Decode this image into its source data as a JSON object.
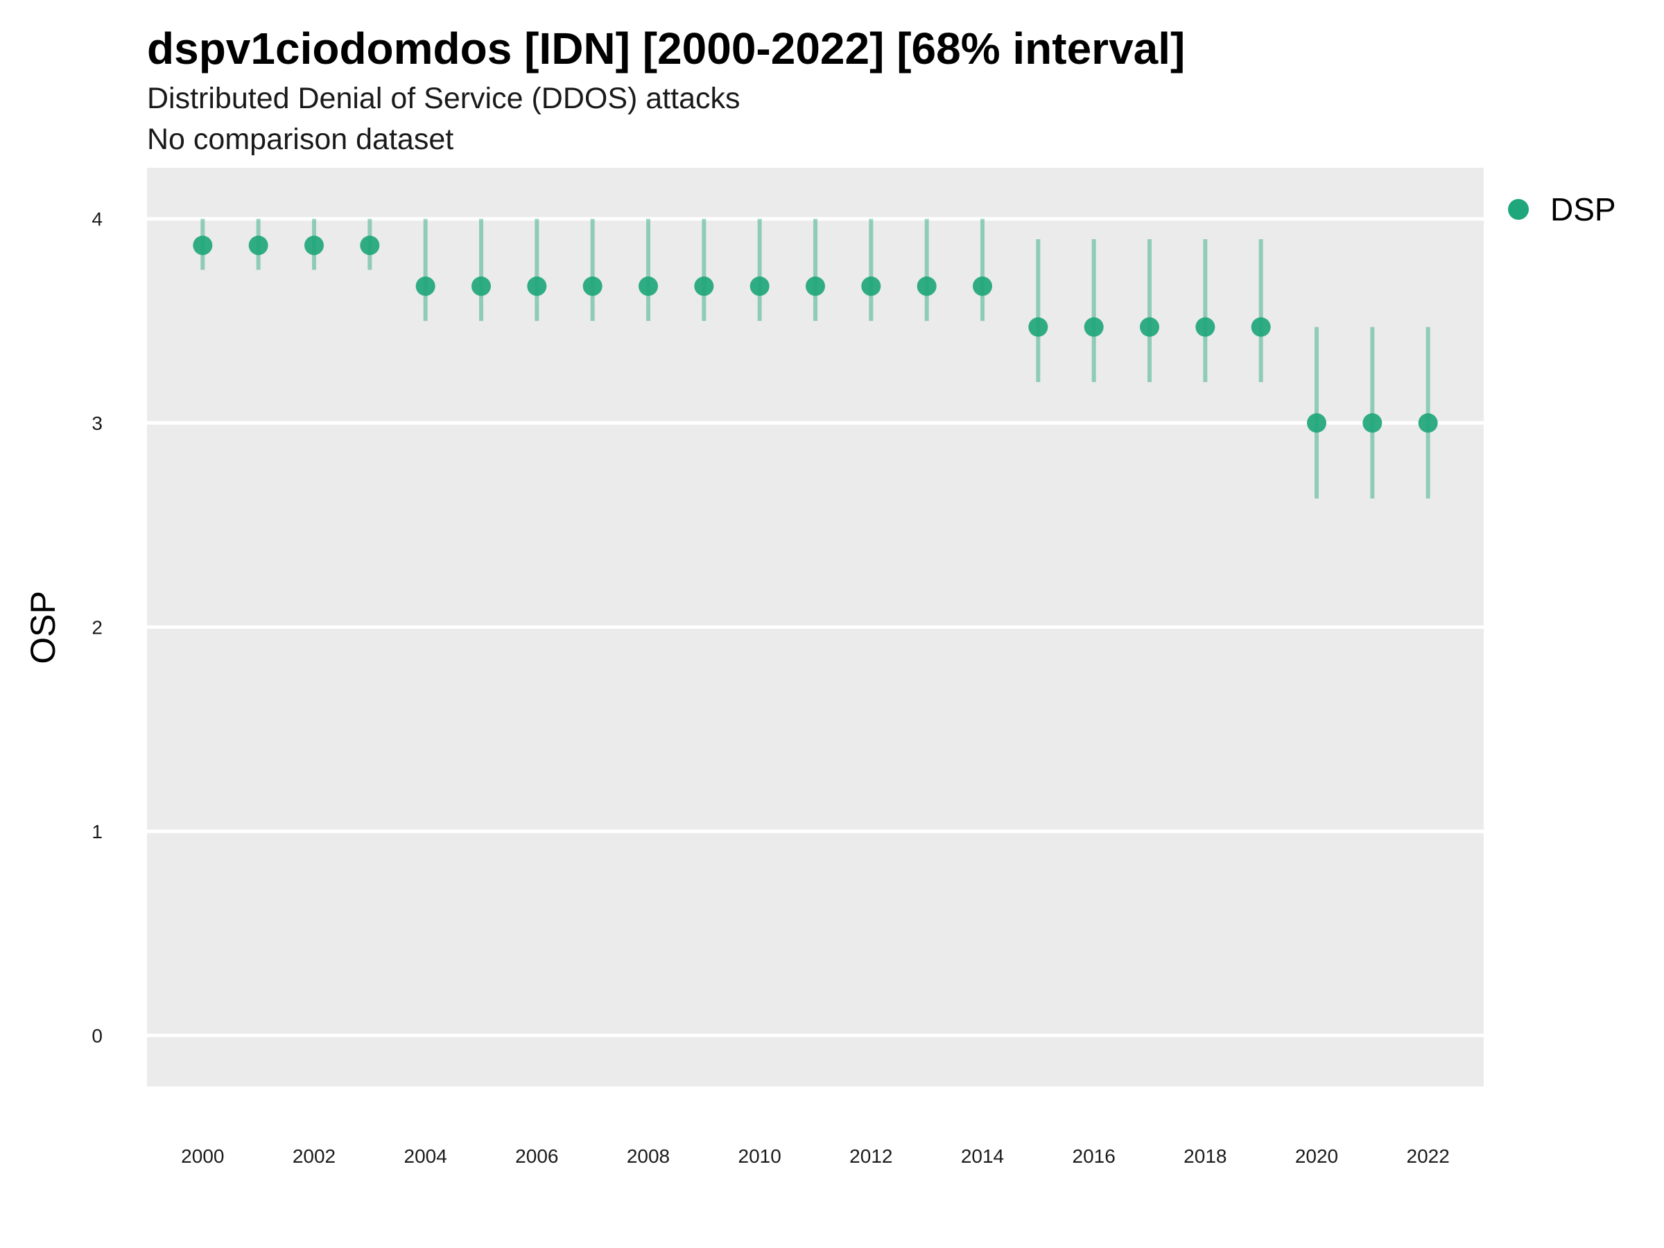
{
  "chart_data": {
    "type": "scatter",
    "title": "dspv1ciodomdos [IDN] [2000-2022] [68% interval]",
    "subtitle": "Distributed Denial of Service (DDOS) attacks",
    "caption": "No comparison dataset",
    "xlabel": "",
    "ylabel": "OSP",
    "xlim": [
      1999,
      2023
    ],
    "ylim": [
      -0.25,
      4.25
    ],
    "x_ticks": [
      2000,
      2002,
      2004,
      2006,
      2008,
      2010,
      2012,
      2014,
      2016,
      2018,
      2020,
      2022
    ],
    "y_ticks": [
      0,
      1,
      2,
      3,
      4
    ],
    "grid": true,
    "legend_position": "right",
    "series": [
      {
        "name": "DSP",
        "color": "#1fa67a",
        "x": [
          2000,
          2001,
          2002,
          2003,
          2004,
          2005,
          2006,
          2007,
          2008,
          2009,
          2010,
          2011,
          2012,
          2013,
          2014,
          2015,
          2016,
          2017,
          2018,
          2019,
          2020,
          2021,
          2022
        ],
        "y": [
          3.87,
          3.87,
          3.87,
          3.87,
          3.67,
          3.67,
          3.67,
          3.67,
          3.67,
          3.67,
          3.67,
          3.67,
          3.67,
          3.67,
          3.67,
          3.47,
          3.47,
          3.47,
          3.47,
          3.47,
          3.0,
          3.0,
          3.0
        ],
        "lower": [
          3.75,
          3.75,
          3.75,
          3.75,
          3.5,
          3.5,
          3.5,
          3.5,
          3.5,
          3.5,
          3.5,
          3.5,
          3.5,
          3.5,
          3.5,
          3.2,
          3.2,
          3.2,
          3.2,
          3.2,
          2.63,
          2.63,
          2.63
        ],
        "upper": [
          4.0,
          4.0,
          4.0,
          4.0,
          4.0,
          4.0,
          4.0,
          4.0,
          4.0,
          4.0,
          4.0,
          4.0,
          4.0,
          4.0,
          4.0,
          3.9,
          3.9,
          3.9,
          3.9,
          3.9,
          3.47,
          3.47,
          3.47
        ]
      }
    ]
  }
}
